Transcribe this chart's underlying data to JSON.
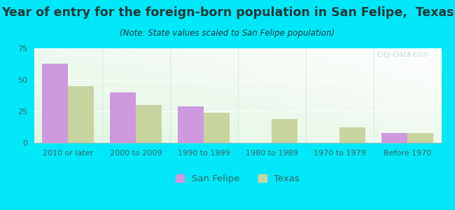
{
  "title": "Year of entry for the foreign-born population in San Felipe,  Texas",
  "subtitle": "(Note: State values scaled to San Felipe population)",
  "categories": [
    "2010 or later",
    "2000 to 2009",
    "1990 to 1999",
    "1980 to 1989",
    "1970 to 1979",
    "Before 1970"
  ],
  "san_felipe": [
    63,
    40,
    29,
    0,
    0,
    8
  ],
  "texas": [
    45,
    30,
    24,
    19,
    12,
    8
  ],
  "san_felipe_color": "#cc99dd",
  "texas_color": "#c8d4a0",
  "bg_outer": "#00e8f8",
  "ylim": [
    0,
    75
  ],
  "yticks": [
    0,
    25,
    50,
    75
  ],
  "bar_width": 0.38,
  "title_fontsize": 12.5,
  "subtitle_fontsize": 8.5,
  "legend_fontsize": 9.5,
  "tick_fontsize": 8,
  "title_color": "#1a3a3a",
  "subtitle_color": "#1a3a3a",
  "tick_color": "#336666",
  "watermark": "City-Data.com"
}
